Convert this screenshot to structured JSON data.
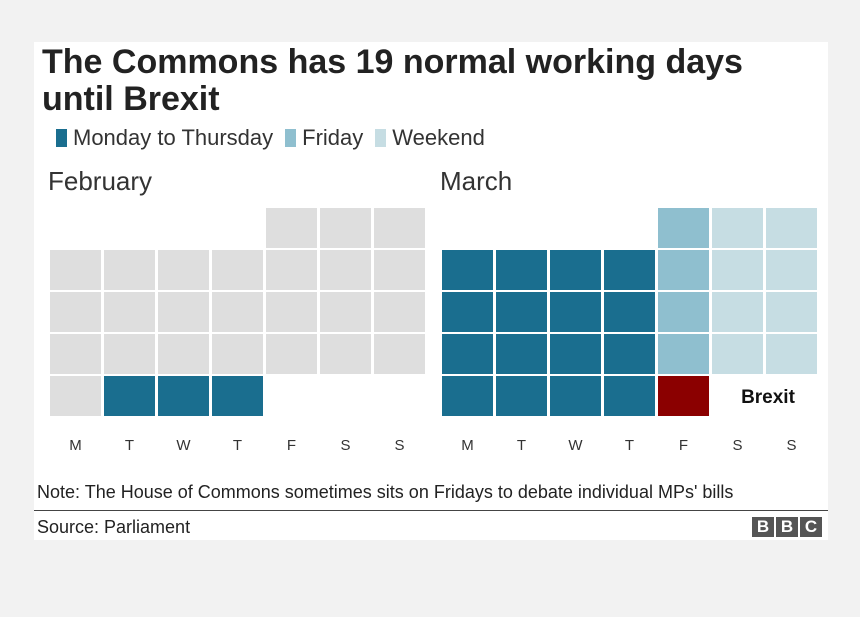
{
  "title": "The Commons has 19 normal working days until Brexit",
  "legend": [
    {
      "label": "Monday to Thursday",
      "color": "#1a6e8f"
    },
    {
      "label": "Friday",
      "color": "#8fbfcf"
    },
    {
      "label": "Weekend",
      "color": "#c6dde3"
    }
  ],
  "colors": {
    "past": "#dedede",
    "mon_thu": "#1a6e8f",
    "friday": "#8fbfcf",
    "weekend": "#c6dde3",
    "brexit": "#8b0000"
  },
  "note": "Note: The House of Commons sometimes sits on Fridays to debate individual MPs' bills",
  "source": "Source: Parliament",
  "brand": [
    "B",
    "B",
    "C"
  ],
  "chart_data": {
    "type": "heatmap",
    "title": "The Commons has 19 normal working days until Brexit",
    "days_remaining": 19,
    "weekday_labels": [
      "M",
      "T",
      "W",
      "T",
      "F",
      "S",
      "S"
    ],
    "months": [
      {
        "name": "February",
        "start_weekday": 4,
        "num_days": 28,
        "status": [
          "past",
          "past",
          "past",
          "past",
          "past",
          "past",
          "past",
          "past",
          "past",
          "past",
          "past",
          "past",
          "past",
          "past",
          "past",
          "past",
          "past",
          "past",
          "past",
          "past",
          "past",
          "past",
          "past",
          "past",
          "past",
          "mon_thu",
          "mon_thu",
          "mon_thu"
        ]
      },
      {
        "name": "March",
        "start_weekday": 4,
        "num_days": 29,
        "status": [
          "friday",
          "weekend",
          "weekend",
          "mon_thu",
          "mon_thu",
          "mon_thu",
          "mon_thu",
          "friday",
          "weekend",
          "weekend",
          "mon_thu",
          "mon_thu",
          "mon_thu",
          "mon_thu",
          "friday",
          "weekend",
          "weekend",
          "mon_thu",
          "mon_thu",
          "mon_thu",
          "mon_thu",
          "friday",
          "weekend",
          "weekend",
          "mon_thu",
          "mon_thu",
          "mon_thu",
          "mon_thu",
          "brexit"
        ],
        "annotation": {
          "label": "Brexit",
          "day": 29
        }
      }
    ]
  }
}
